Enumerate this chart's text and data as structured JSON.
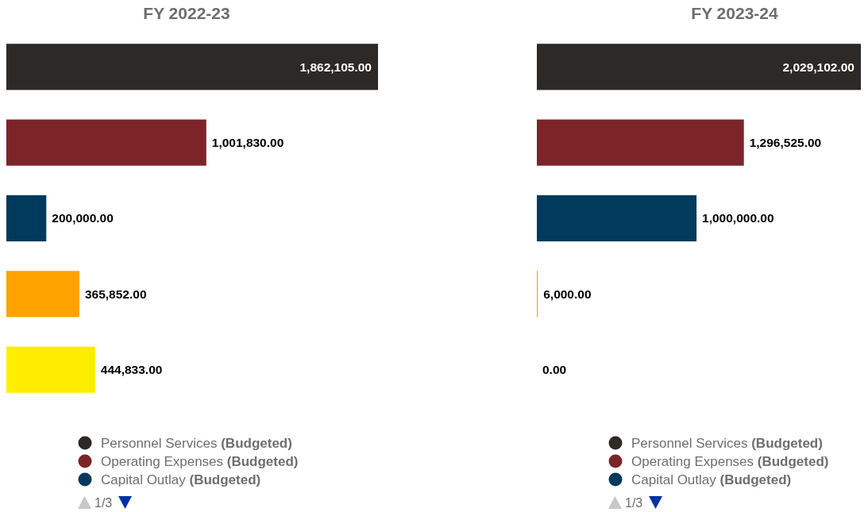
{
  "chart_data": [
    {
      "type": "bar",
      "orientation": "horizontal",
      "stacked": true,
      "title": "FY 2022-23",
      "categories": [
        null,
        null,
        null,
        null,
        null
      ],
      "legend": "bottom",
      "annotations": [
        "1/3"
      ],
      "series": [
        {
          "name": "Personnel Services (Budgeted)",
          "color": "#2d2926",
          "values": [
            1862105,
            0,
            0,
            0,
            0
          ],
          "value_labels": [
            "1,862,105.00",
            null,
            null,
            null,
            null
          ]
        },
        {
          "name": "Operating Expenses (Budgeted)",
          "color": "#7b2528",
          "values": [
            0,
            1001830,
            0,
            0,
            0
          ],
          "value_labels": [
            null,
            "1,001,830.00",
            null,
            null,
            null
          ]
        },
        {
          "name": "Capital Outlay (Budgeted)",
          "color": "#003a5d",
          "values": [
            0,
            0,
            200000,
            0,
            0
          ],
          "value_labels": [
            null,
            null,
            "200,000.00",
            null,
            null
          ]
        },
        {
          "color": "#ffa300",
          "values": [
            0,
            0,
            0,
            365852,
            0
          ],
          "value_labels": [
            null,
            null,
            null,
            "365,852.00",
            null
          ]
        },
        {
          "color": "#ffed00",
          "values": [
            0,
            0,
            0,
            0,
            444833
          ],
          "value_labels": [
            null,
            null,
            null,
            null,
            "444,833.00"
          ]
        }
      ]
    },
    {
      "type": "bar",
      "orientation": "horizontal",
      "stacked": true,
      "title": "FY 2023-24",
      "categories": [
        null,
        null,
        null,
        null,
        null
      ],
      "legend": "bottom",
      "annotations": [
        "1/3"
      ],
      "series": [
        {
          "name": "Personnel Services (Budgeted)",
          "color": "#2d2926",
          "values": [
            2029102,
            0,
            0,
            0,
            0
          ],
          "value_labels": [
            "2,029,102.00",
            null,
            null,
            null,
            null
          ]
        },
        {
          "name": "Operating Expenses (Budgeted)",
          "color": "#7b2528",
          "values": [
            0,
            1296525,
            0,
            0,
            0
          ],
          "value_labels": [
            null,
            "1,296,525.00",
            null,
            null,
            null
          ]
        },
        {
          "name": "Capital Outlay (Budgeted)",
          "color": "#003a5d",
          "values": [
            0,
            0,
            1000000,
            0,
            0
          ],
          "value_labels": [
            null,
            null,
            "1,000,000.00",
            null,
            null
          ]
        },
        {
          "color": "#ffa300",
          "values": [
            0,
            0,
            0,
            6000,
            0
          ],
          "value_labels": [
            null,
            null,
            null,
            "6,000.00",
            null
          ]
        },
        {
          "color": "#ffed00",
          "values": [
            0,
            0,
            0,
            0,
            0
          ],
          "value_labels": [
            null,
            null,
            null,
            null,
            "0.00"
          ]
        }
      ]
    }
  ]
}
